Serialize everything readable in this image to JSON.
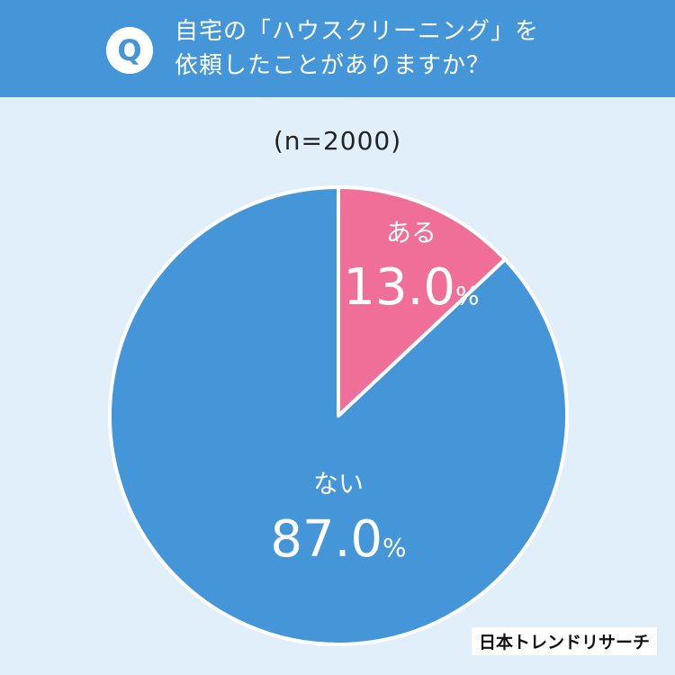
{
  "question": {
    "badge": "Q",
    "line1": "自宅の「ハウスクリーニング」を",
    "line2": "依頼したことがありますか？"
  },
  "sample_size": "(n=2000)",
  "logo": "日本トレンドリサーチ",
  "colors": {
    "header": "#4496d8",
    "background": "#e1effa",
    "yes": "#ef6f98",
    "no": "#4496d8"
  },
  "chart_data": {
    "type": "pie",
    "title": "",
    "categories": [
      "ある",
      "ない"
    ],
    "values": [
      13.0,
      87.0
    ],
    "value_labels": [
      "13.0",
      "87.0"
    ],
    "unit": "%",
    "start": "top, clockwise",
    "legend": "none"
  }
}
